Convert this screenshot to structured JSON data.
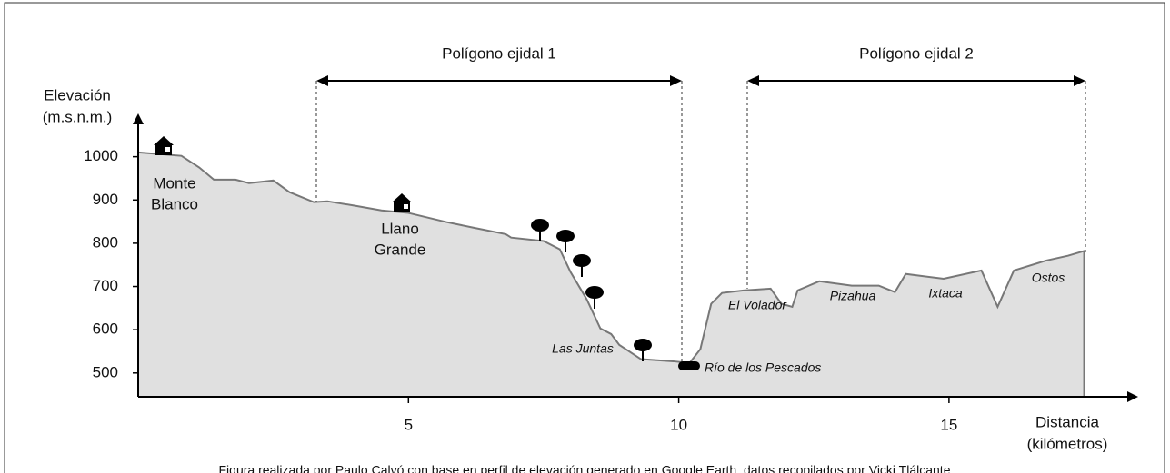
{
  "chart_data": {
    "type": "area",
    "labels": [
      "Polígono ejidal 1",
      "Polígono ejidal 2"
    ],
    "ylabel": [
      "Elevación",
      "(m.s.n.m.)"
    ],
    "xlabel": [
      "Distancia",
      "(kilómetros)"
    ],
    "places": [
      [
        "Monte",
        "Blanco"
      ],
      [
        "Llano",
        "Grande"
      ],
      [
        "Las Juntas"
      ],
      [
        "El Volador"
      ],
      [
        "Pizahua"
      ],
      [
        "Ixtaca"
      ],
      [
        "Ostos"
      ],
      [
        "Río de los Pescados"
      ]
    ],
    "caption": "Figura realizada por Paulo Calvó con base en perfil de elevación generado en Google Earth, datos recopilados por Vicki Tlálcante",
    "x": [
      0,
      0.8,
      1.13,
      1.4,
      1.8,
      2.05,
      2.5,
      2.8,
      3.25,
      3.5,
      4.0,
      4.5,
      5.0,
      5.7,
      6.2,
      6.8,
      6.9,
      7.5,
      7.8,
      8.0,
      8.3,
      8.55,
      8.75,
      8.9,
      9.3,
      9.9,
      10.2,
      10.4,
      10.6,
      10.8,
      11.2,
      11.7,
      11.9,
      12.1,
      12.2,
      12.6,
      13.2,
      13.7,
      14.0,
      14.2,
      14.9,
      15.6,
      15.9,
      16.2,
      16.8,
      17.2,
      17.5
    ],
    "values": [
      1010,
      1002,
      975,
      947,
      947,
      939,
      945,
      918,
      895,
      897,
      887,
      876,
      870,
      849,
      836,
      821,
      813,
      805,
      786,
      733,
      670,
      603,
      590,
      565,
      532,
      527,
      523,
      555,
      660,
      685,
      691,
      695,
      660,
      653,
      691,
      712,
      702,
      702,
      687,
      729,
      718,
      737,
      653,
      737,
      760,
      771,
      782
    ],
    "color": "#e0e0e0",
    "line_color": "#777777",
    "xlim": [
      0,
      18.5
    ],
    "ylim": [
      445,
      1100
    ],
    "xticks": [
      5,
      10,
      15
    ],
    "yticks": [
      500,
      600,
      700,
      800,
      900,
      1000
    ]
  }
}
